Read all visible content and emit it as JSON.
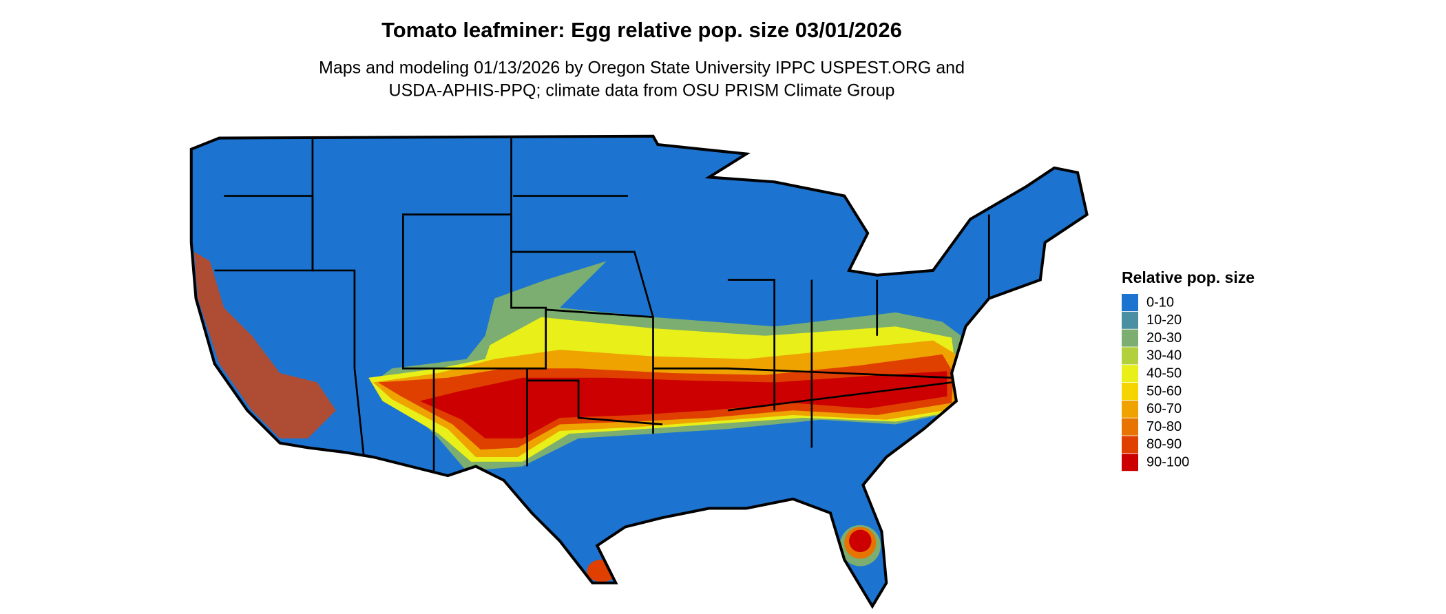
{
  "title": "Tomato leafminer: Egg relative pop. size 03/01/2026",
  "subtitle": [
    "Maps and modeling 01/13/2026 by Oregon State University IPPC USPEST.ORG and",
    "USDA-APHIS-PPQ; climate data from OSU PRISM Climate Group"
  ],
  "legend": {
    "title": "Relative pop. size",
    "items": [
      {
        "label": "0-10",
        "color": "#1c74d0"
      },
      {
        "label": "10-20",
        "color": "#4a90a2"
      },
      {
        "label": "20-30",
        "color": "#7bae70"
      },
      {
        "label": "30-40",
        "color": "#b2d03c"
      },
      {
        "label": "40-50",
        "color": "#e8ef19"
      },
      {
        "label": "50-60",
        "color": "#f6d400"
      },
      {
        "label": "60-70",
        "color": "#eea300"
      },
      {
        "label": "70-80",
        "color": "#e77300"
      },
      {
        "label": "80-90",
        "color": "#df4000"
      },
      {
        "label": "90-100",
        "color": "#cc0000"
      }
    ]
  }
}
